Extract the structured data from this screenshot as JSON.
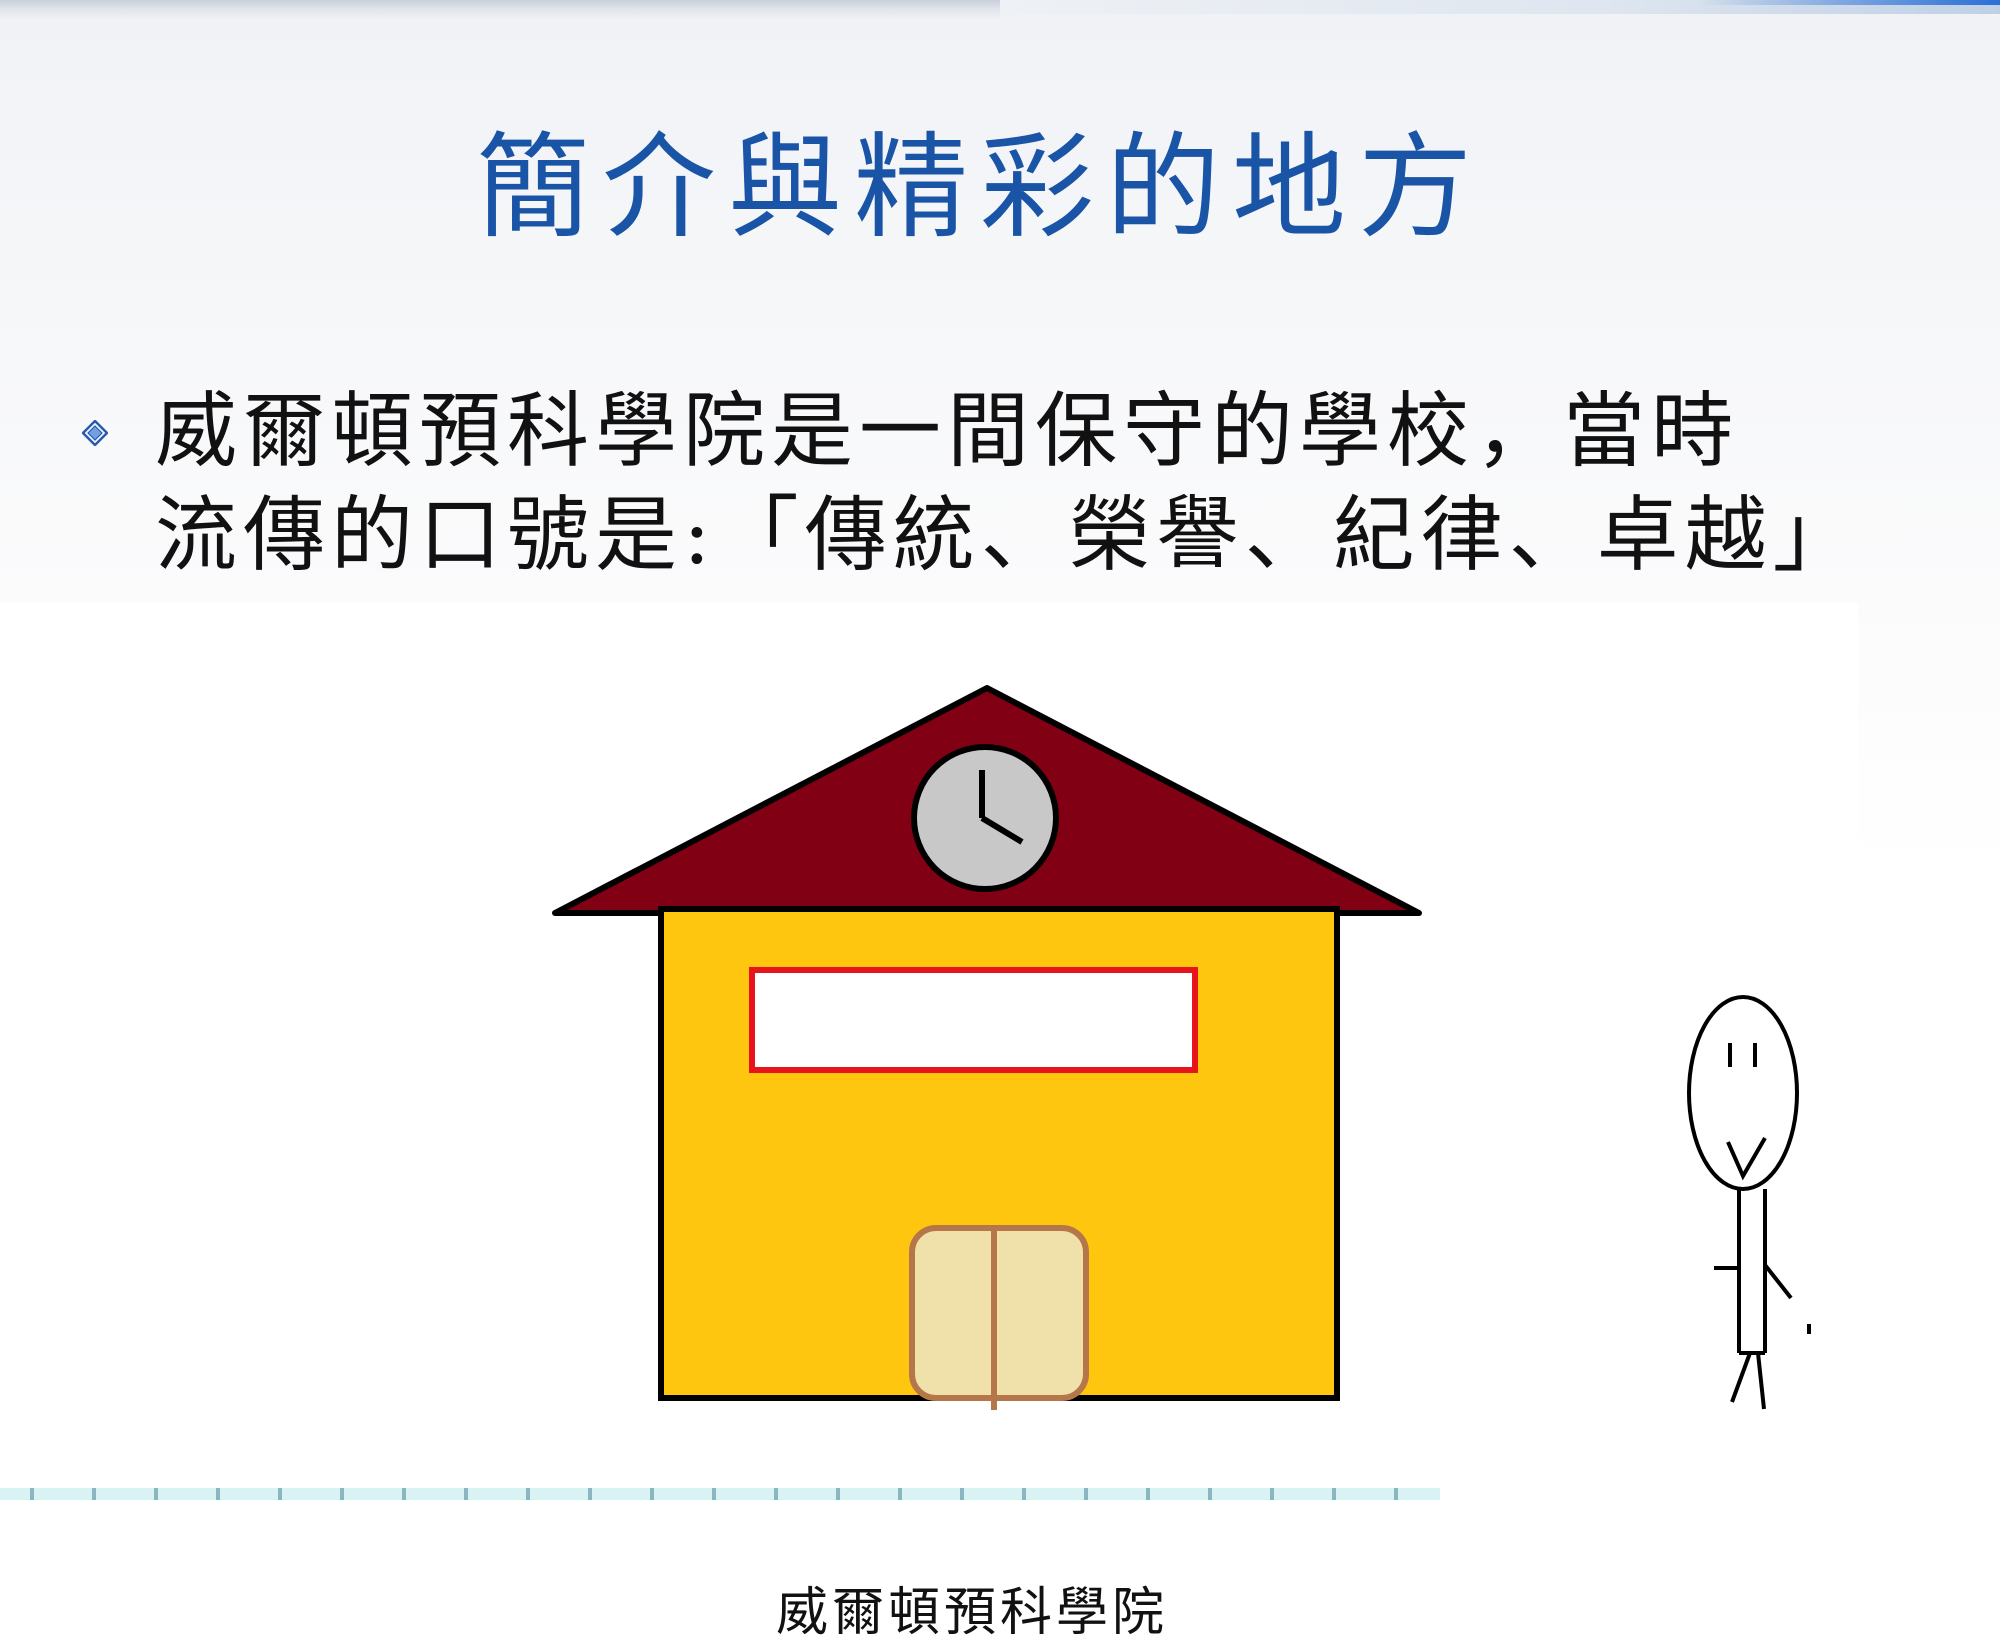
{
  "slide": {
    "title": "簡介與精彩的地方",
    "bullet_icon": "diamond-bullet-icon",
    "bullet_lines": [
      "威爾頓預科學院是一間保守的學校，當時",
      "流傳的口號是:「傳統、榮譽、紀律、卓越」"
    ]
  },
  "illustration": {
    "school_sign": "威爾頓預科學院",
    "colors": {
      "title_blue": "#1a54a6",
      "roof": "#820014",
      "wall": "#fec60f",
      "sign_border": "#e8141c",
      "door": "#efe1a9",
      "door_frame": "#b5764a",
      "clock_face": "#c8c8c8"
    },
    "icons": [
      "clock-icon",
      "stick-figure-icon"
    ]
  }
}
